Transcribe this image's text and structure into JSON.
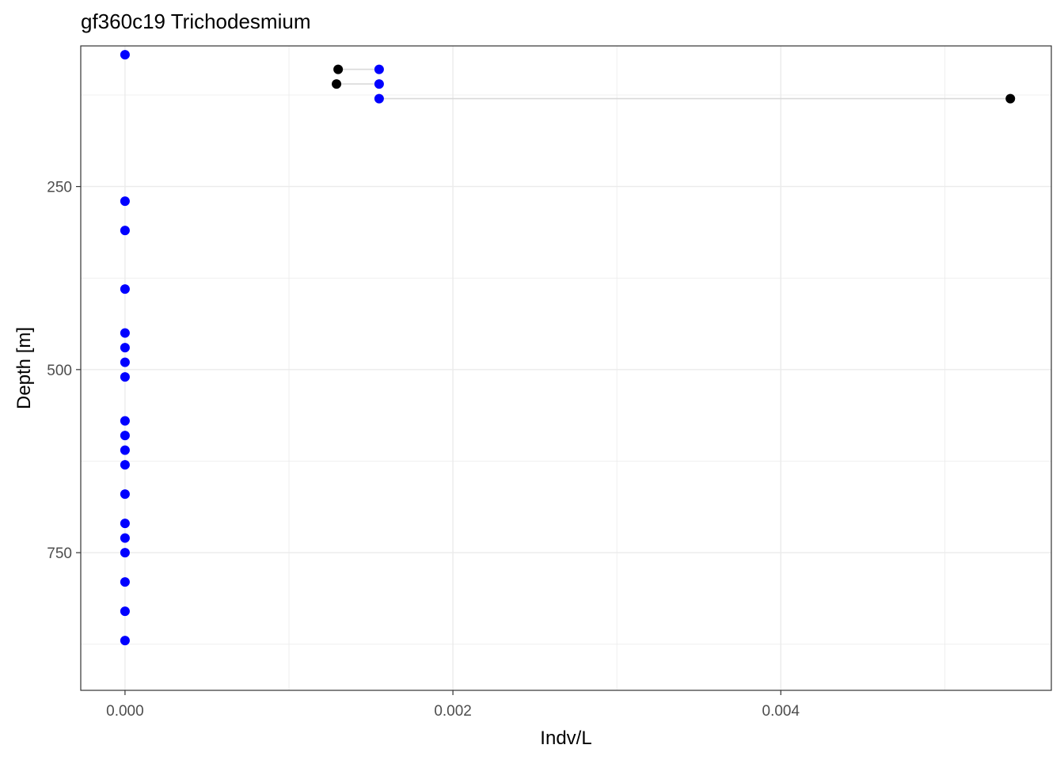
{
  "chart_data": {
    "type": "scatter",
    "title": "gf360c19 Trichodesmium",
    "xlabel": "Indv/L",
    "ylabel": "Depth [m]",
    "x_ticks": [
      "0.000",
      "0.002",
      "0.004"
    ],
    "y_ticks": [
      "250",
      "500",
      "750"
    ],
    "x_tick_values": [
      0.0,
      0.002,
      0.004
    ],
    "y_tick_values": [
      250,
      500,
      750
    ],
    "xlim": [
      -0.00027,
      0.00565
    ],
    "ylim": [
      58,
      938
    ],
    "y_reversed": true,
    "grid": true,
    "colors": {
      "blue_points": "#0000ff",
      "black_points": "#000000",
      "segments": "#d9d9d9",
      "grid": "#ebebeb",
      "frame": "#333333"
    },
    "series": [
      {
        "color": "blue",
        "points": [
          {
            "x": 0.0,
            "y": 70
          },
          {
            "x": 0.00155,
            "y": 90
          },
          {
            "x": 0.00155,
            "y": 110
          },
          {
            "x": 0.00155,
            "y": 130
          },
          {
            "x": 0.0,
            "y": 270
          },
          {
            "x": 0.0,
            "y": 310
          },
          {
            "x": 0.0,
            "y": 390
          },
          {
            "x": 0.0,
            "y": 450
          },
          {
            "x": 0.0,
            "y": 470
          },
          {
            "x": 0.0,
            "y": 490
          },
          {
            "x": 0.0,
            "y": 510
          },
          {
            "x": 0.0,
            "y": 570
          },
          {
            "x": 0.0,
            "y": 590
          },
          {
            "x": 0.0,
            "y": 610
          },
          {
            "x": 0.0,
            "y": 630
          },
          {
            "x": 0.0,
            "y": 670
          },
          {
            "x": 0.0,
            "y": 710
          },
          {
            "x": 0.0,
            "y": 730
          },
          {
            "x": 0.0,
            "y": 750
          },
          {
            "x": 0.0,
            "y": 790
          },
          {
            "x": 0.0,
            "y": 830
          },
          {
            "x": 0.0,
            "y": 870
          }
        ]
      },
      {
        "color": "black",
        "points": [
          {
            "x": 0.0013,
            "y": 90
          },
          {
            "x": 0.00129,
            "y": 110
          },
          {
            "x": 0.0054,
            "y": 130
          }
        ]
      }
    ],
    "segments": [
      {
        "x1": 0.0013,
        "x2": 0.00155,
        "y": 90
      },
      {
        "x1": 0.00129,
        "x2": 0.00155,
        "y": 110
      },
      {
        "x1": 0.00155,
        "x2": 0.0054,
        "y": 130
      }
    ]
  }
}
